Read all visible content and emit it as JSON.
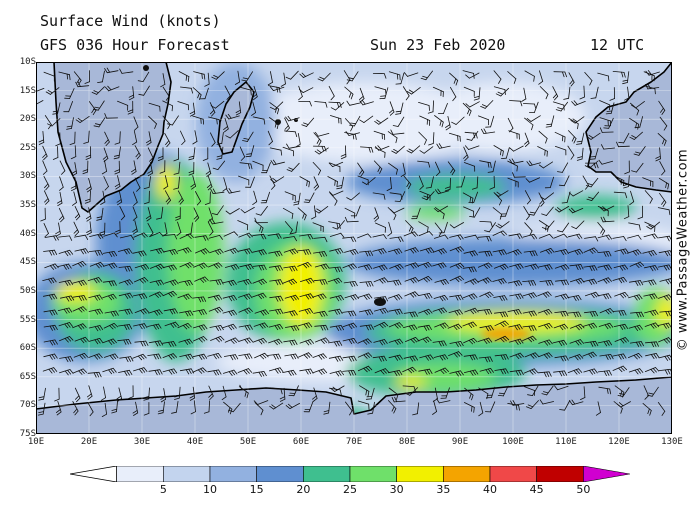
{
  "header": {
    "title": "Surface Wind (knots)",
    "model": "GFS 036 Hour Forecast",
    "date": "Sun 23 Feb 2020",
    "time": "12 UTC"
  },
  "credit": "© www.PassageWeather.com",
  "latitude_labels": [
    "10S",
    "15S",
    "20S",
    "25S",
    "30S",
    "35S",
    "40S",
    "45S",
    "50S",
    "55S",
    "60S",
    "65S",
    "70S",
    "75S"
  ],
  "longitude_labels": [
    "10E",
    "20E",
    "30E",
    "40E",
    "50E",
    "60E",
    "70E",
    "80E",
    "90E",
    "100E",
    "110E",
    "120E",
    "130E"
  ],
  "legend": {
    "unit": "knots",
    "labels": [
      "5",
      "10",
      "15",
      "20",
      "25",
      "30",
      "35",
      "40",
      "45",
      "50"
    ],
    "colors": [
      "#e8eefa",
      "#c3d4ee",
      "#92b1e0",
      "#5f8fd0",
      "#3fbf8f",
      "#6fe06a",
      "#f2f000",
      "#f4a400",
      "#f04848",
      "#c00000",
      "#d000d0"
    ]
  },
  "colors": {
    "land": "#a8b8d8",
    "ocean_base": "#c7d6ee",
    "coast": "#000000",
    "barb": "#111111"
  }
}
